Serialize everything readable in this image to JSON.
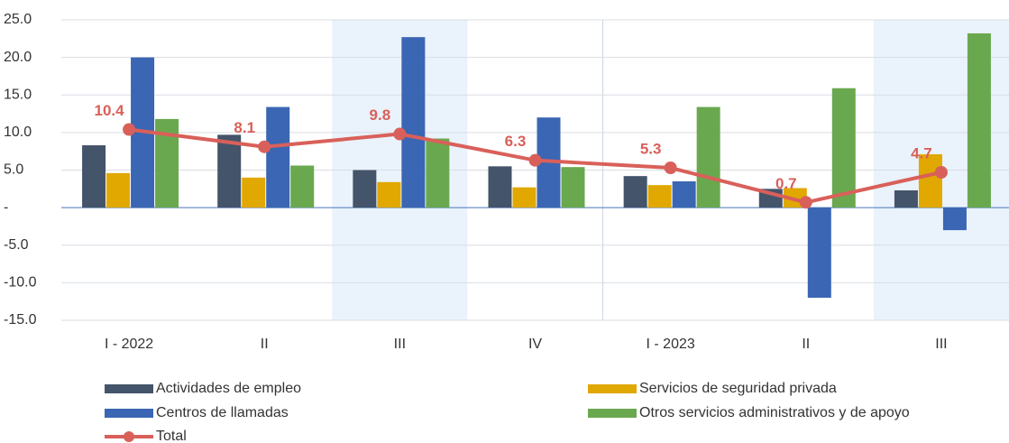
{
  "chart_data": {
    "type": "bar_line",
    "categories": [
      "I - 2022",
      "II",
      "III",
      "IV",
      "I - 2023",
      "II",
      "III"
    ],
    "series": [
      {
        "name": "Actividades de empleo",
        "color": "#44546a",
        "values": [
          8.3,
          9.7,
          5.0,
          5.5,
          4.2,
          2.5,
          2.3
        ]
      },
      {
        "name": "Servicios de seguridad privada",
        "color": "#e0a800",
        "values": [
          4.6,
          4.0,
          3.4,
          2.7,
          3.0,
          2.6,
          7.1
        ]
      },
      {
        "name": "Centros de llamadas",
        "color": "#3a66b3",
        "values": [
          20.0,
          13.4,
          22.7,
          12.0,
          3.5,
          -12.0,
          -3.0
        ]
      },
      {
        "name": "Otros servicios administrativos y de apoyo",
        "color": "#6aa84f",
        "values": [
          11.8,
          5.6,
          9.2,
          5.4,
          13.4,
          15.9,
          23.2
        ]
      },
      {
        "name": "Total",
        "type": "line",
        "color": "#d9605a",
        "values": [
          10.4,
          8.1,
          9.8,
          6.3,
          5.3,
          0.7,
          4.7
        ]
      }
    ],
    "ylim": [
      -15,
      25
    ],
    "yticks": [
      {
        "value": -15,
        "label": "-15.0"
      },
      {
        "value": -10,
        "label": "-10.0"
      },
      {
        "value": -5,
        "label": "-5.0"
      },
      {
        "value": 0,
        "label": "-"
      },
      {
        "value": 5,
        "label": "5.0"
      },
      {
        "value": 10,
        "label": "10.0"
      },
      {
        "value": 15,
        "label": "15.0"
      },
      {
        "value": 20,
        "label": "20.0"
      },
      {
        "value": 25,
        "label": "25.0"
      }
    ],
    "grid": true
  }
}
